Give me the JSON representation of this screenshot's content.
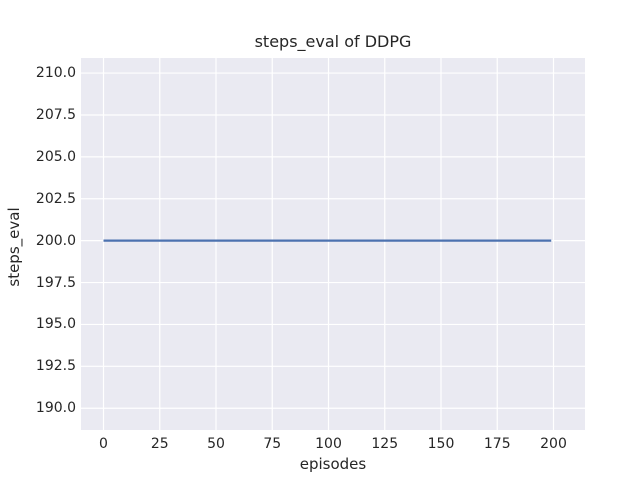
{
  "chart_data": {
    "type": "line",
    "title": "steps_eval of DDPG",
    "xlabel": "episodes",
    "ylabel": "steps_eval",
    "xticks": [
      0,
      25,
      50,
      75,
      100,
      125,
      150,
      175,
      200
    ],
    "xtick_labels": [
      "0",
      "25",
      "50",
      "75",
      "100",
      "125",
      "150",
      "175",
      "200"
    ],
    "yticks": [
      190.0,
      192.5,
      195.0,
      197.5,
      200.0,
      202.5,
      205.0,
      207.5,
      210.0
    ],
    "ytick_labels": [
      "190.0",
      "192.5",
      "195.0",
      "197.5",
      "200.0",
      "202.5",
      "205.0",
      "207.5",
      "210.0"
    ],
    "xlim": [
      -10,
      214
    ],
    "ylim": [
      188.7,
      210.9
    ],
    "grid": true,
    "legend": null,
    "series": [
      {
        "name": "steps_eval",
        "color": "#4c72b0",
        "x": [
          0,
          199
        ],
        "y": [
          200,
          200
        ]
      }
    ],
    "styles": {
      "figure_background": "#ffffff",
      "axes_background": "#eaeaf2",
      "grid_color": "#ffffff",
      "text_color": "#262626"
    }
  }
}
